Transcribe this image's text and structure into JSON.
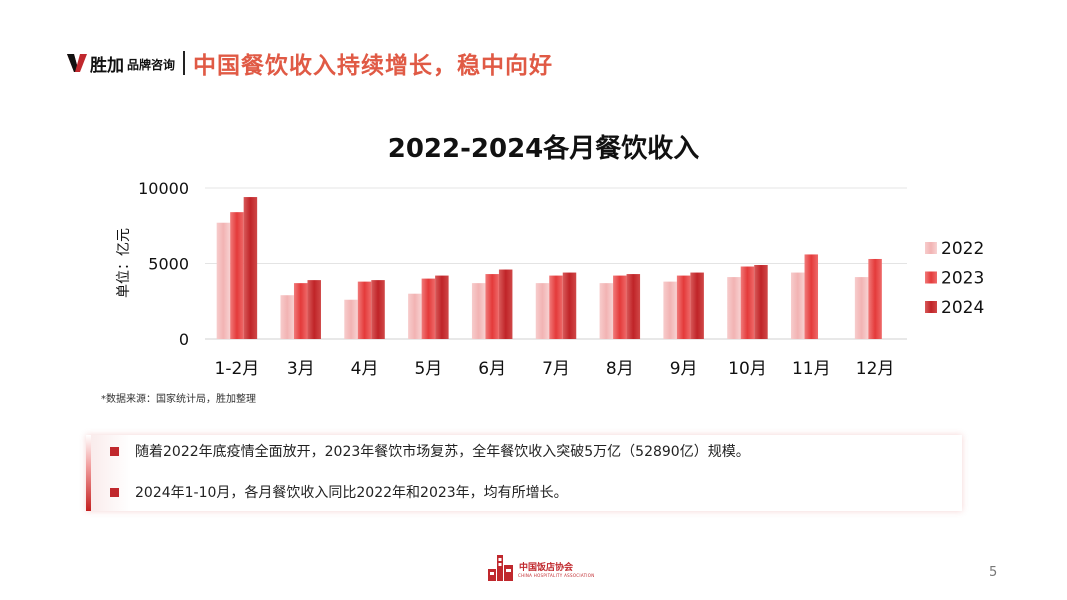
{
  "header": {
    "logo_name": "胜加",
    "logo_sub": "品牌咨询",
    "title": "中国餐饮收入持续增长，稳中向好"
  },
  "chart_data": {
    "type": "bar",
    "title": "2022-2024各月餐饮收入",
    "ylabel": "单位：亿元",
    "xlabel": "",
    "categories": [
      "1-2月",
      "3月",
      "4月",
      "5月",
      "6月",
      "7月",
      "8月",
      "9月",
      "10月",
      "11月",
      "12月"
    ],
    "series": [
      {
        "name": "2022",
        "values": [
          7700,
          2900,
          2600,
          3000,
          3700,
          3700,
          3700,
          3800,
          4100,
          4400,
          4100
        ],
        "color": "#f2b8b8"
      },
      {
        "name": "2023",
        "values": [
          8400,
          3700,
          3800,
          4000,
          4300,
          4200,
          4200,
          4200,
          4800,
          5600,
          5300
        ],
        "color": "#e84040"
      },
      {
        "name": "2024",
        "values": [
          9400,
          3900,
          3900,
          4200,
          4600,
          4400,
          4300,
          4400,
          4900,
          null,
          null
        ],
        "color": "#c42328"
      }
    ],
    "ylim": [
      0,
      10000
    ],
    "yticks": [
      0,
      5000,
      10000
    ],
    "grid": true,
    "legend": "right"
  },
  "source_note": "*数据来源：国家统计局，胜加整理",
  "bullets": [
    "随着2022年底疫情全面放开，2023年餐饮市场复苏，全年餐饮收入突破5万亿（52890亿）规模。",
    "2024年1-10月，各月餐饮收入同比2022年和2023年，均有所增长。"
  ],
  "footer": {
    "logo_cn": "中国饭店协会",
    "logo_en": "CHINA HOSPITALITY ASSOCIATION",
    "page_number": "5"
  },
  "colors": {
    "accent": "#e05a45",
    "bullet": "#c0282d"
  }
}
